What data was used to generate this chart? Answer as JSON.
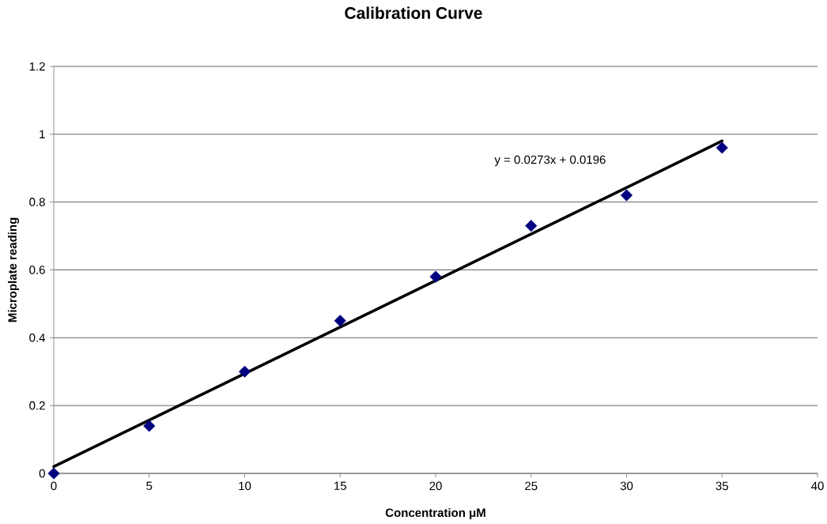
{
  "chart_data": {
    "type": "scatter",
    "title": "Calibration Curve",
    "xlabel": "Concentration μM",
    "ylabel": "Microplate reading",
    "series": [
      {
        "color": "#000080",
        "x": [
          0,
          5,
          10,
          15,
          20,
          25,
          30,
          35
        ],
        "values": [
          0,
          0.14,
          0.3,
          0.45,
          0.58,
          0.73,
          0.82,
          0.96
        ]
      },
      {
        "type": "line",
        "color": "#000000",
        "marker": "none",
        "x": [
          0,
          35
        ],
        "values": [
          0.02,
          0.98
        ]
      }
    ],
    "xlim": [
      0,
      40
    ],
    "xticks": [
      0,
      5,
      10,
      15,
      20,
      25,
      30,
      35,
      40
    ],
    "ylim": [
      0,
      1.2
    ],
    "yticks": [
      0,
      0.2,
      0.4,
      0.6,
      0.8,
      1,
      1.2
    ],
    "grid": "y",
    "marker": "diamond",
    "annotations": [
      "y = 0.0273x + 0.0196"
    ]
  }
}
